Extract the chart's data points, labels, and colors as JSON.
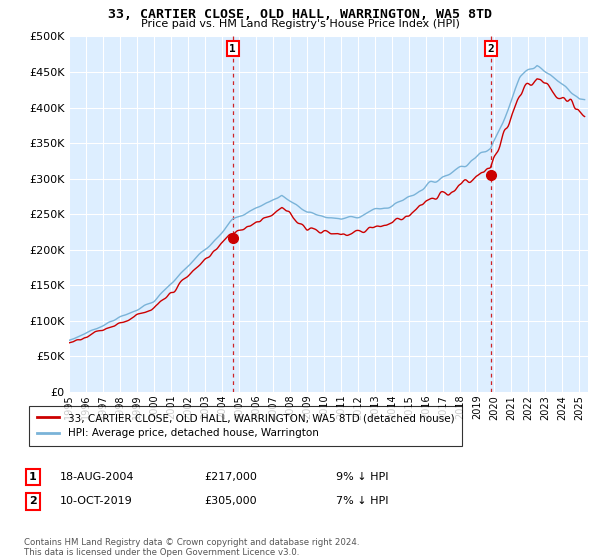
{
  "title": "33, CARTIER CLOSE, OLD HALL, WARRINGTON, WA5 8TD",
  "subtitle": "Price paid vs. HM Land Registry's House Price Index (HPI)",
  "legend_line1": "33, CARTIER CLOSE, OLD HALL, WARRINGTON, WA5 8TD (detached house)",
  "legend_line2": "HPI: Average price, detached house, Warrington",
  "footer": "Contains HM Land Registry data © Crown copyright and database right 2024.\nThis data is licensed under the Open Government Licence v3.0.",
  "annotation1_label": "1",
  "annotation1_date": "18-AUG-2004",
  "annotation1_price": "£217,000",
  "annotation1_hpi": "9% ↓ HPI",
  "annotation2_label": "2",
  "annotation2_date": "10-OCT-2019",
  "annotation2_price": "£305,000",
  "annotation2_hpi": "7% ↓ HPI",
  "sale1_x": 2004.63,
  "sale1_y": 217000,
  "sale2_x": 2019.78,
  "sale2_y": 305000,
  "hpi_color": "#7ab3d8",
  "price_color": "#cc0000",
  "vline_color": "#cc0000",
  "plot_bg": "#ddeeff",
  "ylim": [
    0,
    500000
  ],
  "xlim": [
    1995,
    2025.5
  ],
  "yticks": [
    0,
    50000,
    100000,
    150000,
    200000,
    250000,
    300000,
    350000,
    400000,
    450000,
    500000
  ],
  "xticks": [
    1995,
    1996,
    1997,
    1998,
    1999,
    2000,
    2001,
    2002,
    2003,
    2004,
    2005,
    2006,
    2007,
    2008,
    2009,
    2010,
    2011,
    2012,
    2013,
    2014,
    2015,
    2016,
    2017,
    2018,
    2019,
    2020,
    2021,
    2022,
    2023,
    2024,
    2025
  ]
}
